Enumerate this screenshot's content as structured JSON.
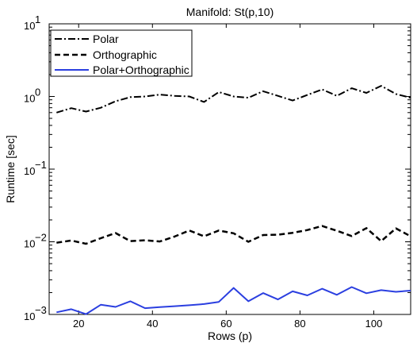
{
  "chart_data": {
    "type": "line",
    "title": "Manifold: St(p,10)",
    "xlabel": "Rows (p)",
    "ylabel": "Runtime [sec]",
    "xlim": [
      12,
      110
    ],
    "ylim": [
      0.001,
      10
    ],
    "yscale": "log",
    "grid": false,
    "legend_position": "top-left",
    "x_ticks": [
      20,
      40,
      60,
      80,
      100
    ],
    "x_tick_labels": [
      "20",
      "40",
      "60",
      "80",
      "100"
    ],
    "y_ticks": [
      0.001,
      0.01,
      0.1,
      1,
      10
    ],
    "y_tick_labels": [
      {
        "base": "10",
        "exp": "−3"
      },
      {
        "base": "10",
        "exp": "−2"
      },
      {
        "base": "10",
        "exp": "−1"
      },
      {
        "base": "10",
        "exp": "0"
      },
      {
        "base": "10",
        "exp": "1"
      }
    ],
    "x": [
      14,
      18,
      22,
      26,
      30,
      34,
      38,
      42,
      46,
      50,
      54,
      58,
      62,
      66,
      70,
      74,
      78,
      82,
      86,
      90,
      94,
      98,
      102,
      106,
      110
    ],
    "series": [
      {
        "name": "Polar",
        "style": "dashdot",
        "color": "#000000",
        "values": [
          0.6,
          0.69,
          0.62,
          0.7,
          0.86,
          0.98,
          1.0,
          1.06,
          1.02,
          1.0,
          0.84,
          1.15,
          1.0,
          0.96,
          1.18,
          1.02,
          0.88,
          1.05,
          1.25,
          1.02,
          1.3,
          1.12,
          1.4,
          1.08,
          0.96
        ]
      },
      {
        "name": "Orthographic",
        "style": "dashed",
        "color": "#000000",
        "values": [
          0.0097,
          0.0104,
          0.0094,
          0.0112,
          0.0132,
          0.0102,
          0.0105,
          0.0101,
          0.0118,
          0.0143,
          0.0119,
          0.0143,
          0.0131,
          0.01,
          0.0124,
          0.0125,
          0.0133,
          0.0145,
          0.0165,
          0.0142,
          0.012,
          0.0154,
          0.0102,
          0.0153,
          0.0119
        ]
      },
      {
        "name": "Polar+Orthographic",
        "style": "solid",
        "color": "#2b3fe0",
        "values": [
          0.00107,
          0.00118,
          0.00101,
          0.00136,
          0.00127,
          0.00152,
          0.00122,
          0.00126,
          0.0013,
          0.00134,
          0.00139,
          0.00149,
          0.00232,
          0.00152,
          0.00197,
          0.00161,
          0.00208,
          0.00183,
          0.00226,
          0.00186,
          0.00238,
          0.00196,
          0.00216,
          0.00205,
          0.00213
        ]
      }
    ]
  }
}
